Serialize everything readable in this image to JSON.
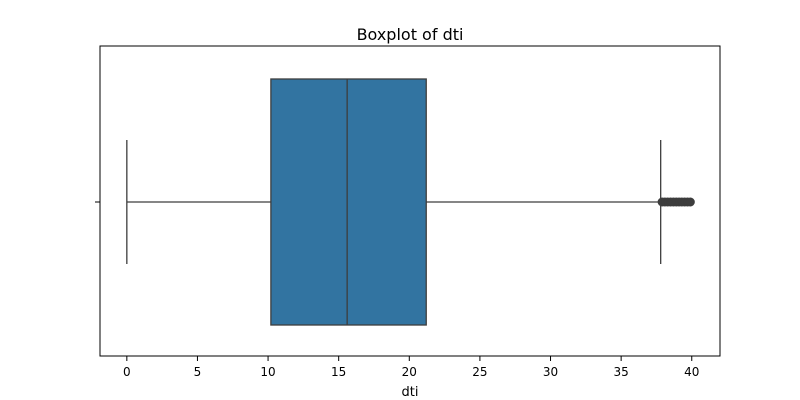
{
  "chart_data": {
    "type": "box",
    "title": "Boxplot of dti",
    "xlabel": "dti",
    "ylabel": "",
    "xlim": [
      -1.9,
      42.0
    ],
    "xticks": [
      0,
      5,
      10,
      15,
      20,
      25,
      30,
      35,
      40
    ],
    "xtick_labels": [
      "0",
      "5",
      "10",
      "15",
      "20",
      "25",
      "30",
      "35",
      "40"
    ],
    "orientation": "horizontal",
    "box": {
      "whisker_low": 0.0,
      "q1": 10.2,
      "median": 15.6,
      "q3": 21.2,
      "whisker_high": 37.8
    },
    "outliers": [
      37.9,
      38.1,
      38.3,
      38.5,
      38.7,
      38.9,
      39.1,
      39.3,
      39.5,
      39.7,
      39.9
    ],
    "colors": {
      "box_fill": "#3274a1",
      "line": "#3d3d3d",
      "outlier": "#3d3d3d",
      "axis": "#000000"
    },
    "grid": false
  }
}
